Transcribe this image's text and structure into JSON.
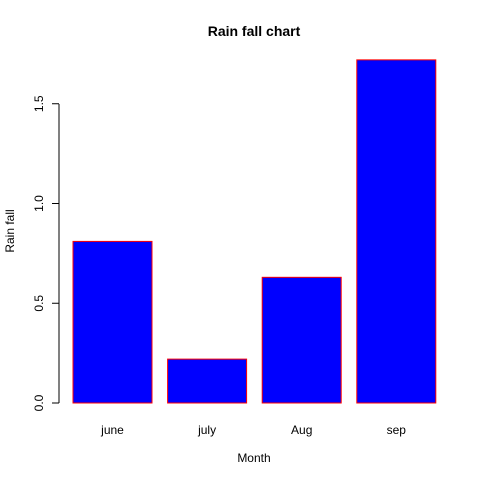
{
  "chart_data": {
    "type": "bar",
    "title": "Rain fall chart",
    "xlabel": "Month",
    "ylabel": "Rain fall",
    "categories": [
      "june",
      "july",
      "Aug",
      "sep"
    ],
    "values": [
      0.81,
      0.22,
      0.63,
      1.72
    ],
    "ylim": [
      0,
      1.72
    ],
    "yticks": [
      "0.0",
      "0.5",
      "1.0",
      "1.5"
    ],
    "bar_fill": "#0000FF",
    "bar_stroke": "#FF0000",
    "grid": false,
    "legend": "none"
  }
}
